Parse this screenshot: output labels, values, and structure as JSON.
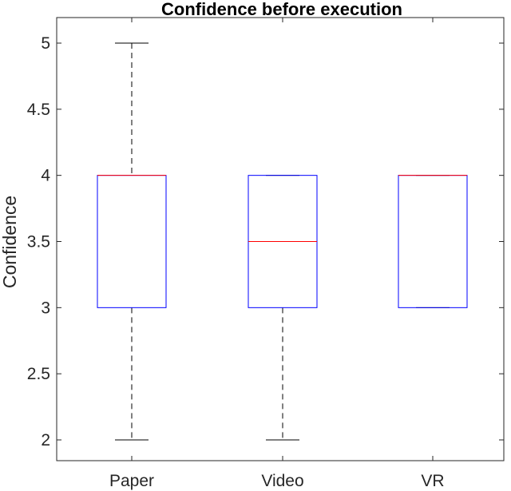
{
  "chart_data": {
    "type": "box",
    "title": "Confidence before execution",
    "xlabel": "",
    "ylabel": "Confidence",
    "ylim": [
      1.85,
      5.2
    ],
    "yticks": [
      2,
      2.5,
      3,
      3.5,
      4,
      4.5,
      5
    ],
    "ytick_labels": [
      "2",
      "2.5",
      "3",
      "3.5",
      "4",
      "4.5",
      "5"
    ],
    "categories": [
      "Paper",
      "Video",
      "VR"
    ],
    "boxes": [
      {
        "category": "Paper",
        "whisker_low": 2,
        "q1": 3,
        "median": 4,
        "q3": 4,
        "whisker_high": 5
      },
      {
        "category": "Video",
        "whisker_low": 2,
        "q1": 3,
        "median": 3.5,
        "q3": 4,
        "whisker_high": 4
      },
      {
        "category": "VR",
        "whisker_low": 3,
        "q1": 3,
        "median": 4,
        "q3": 4,
        "whisker_high": 4
      }
    ],
    "grid": false,
    "colors": {
      "box": "#0000ff",
      "median": "#ff0000",
      "whisker": "#000000",
      "axes": "#262626"
    }
  }
}
